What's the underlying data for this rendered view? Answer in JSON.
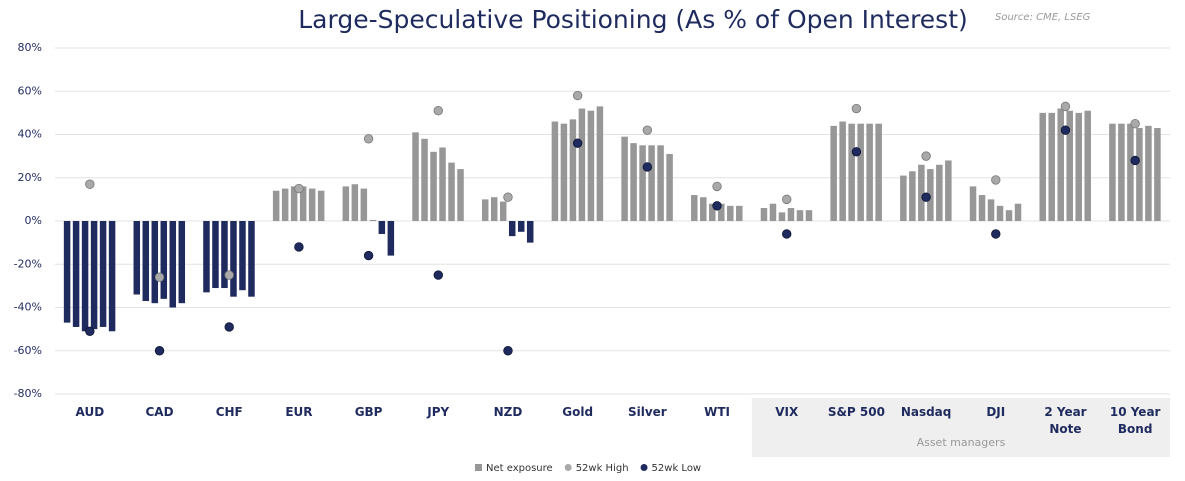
{
  "chart_data": {
    "type": "grouped-bar-range",
    "title": "Large-Speculative Positioning (As % of Open Interest)",
    "source": "Source: CME, LSEG",
    "categories": [
      "AUD",
      "CAD",
      "CHF",
      "EUR",
      "GBP",
      "JPY",
      "NZD",
      "Gold",
      "Silver",
      "WTI",
      "VIX",
      "S&P 500",
      "Nasdaq",
      "DJI",
      "2 Year Note",
      "10 Year Bond"
    ],
    "group_label": "Asset managers",
    "series": [
      {
        "name": "Net exposure",
        "color": "#979797",
        "negative_color": "#1f2b5e",
        "values": [
          [
            -47,
            -49,
            -51,
            -50,
            -49,
            -51
          ],
          [
            -34,
            -37,
            -38,
            -36,
            -40,
            -38
          ],
          [
            -33,
            -31,
            -31,
            -35,
            -32,
            -35
          ],
          [
            14,
            15,
            16,
            16,
            15,
            14
          ],
          [
            16,
            17,
            15,
            0.5,
            -6,
            -16
          ],
          [
            41,
            38,
            32,
            34,
            27,
            24
          ],
          [
            10,
            11,
            9,
            -7,
            -5,
            -10
          ],
          [
            46,
            45,
            47,
            52,
            51,
            53
          ],
          [
            39,
            36,
            35,
            35,
            35,
            31
          ],
          [
            12,
            11,
            8,
            8,
            7,
            7
          ],
          [
            6,
            8,
            4,
            6,
            5,
            5
          ],
          [
            44,
            46,
            45,
            45,
            45,
            45
          ],
          [
            21,
            23,
            26,
            24,
            26,
            28
          ],
          [
            16,
            12,
            10,
            7,
            5,
            8
          ],
          [
            50,
            50,
            52,
            51,
            50,
            51
          ],
          [
            45,
            45,
            45,
            43,
            44,
            43
          ]
        ]
      },
      {
        "name": "52wk High",
        "color": "#a9a9a9",
        "values": [
          17,
          -26,
          -25,
          15,
          38,
          51,
          11,
          58,
          42,
          16,
          10,
          52,
          30,
          19,
          53,
          45
        ]
      },
      {
        "name": "52wk Low",
        "color": "#1f2b5e",
        "values": [
          -51,
          -60,
          -49,
          -12,
          -16,
          -25,
          -60,
          36,
          25,
          7,
          -6,
          32,
          11,
          -6,
          42,
          28
        ]
      }
    ],
    "ylim": [
      -80,
      80
    ],
    "yticks": [
      {
        "value": -80,
        "label": "-80%"
      },
      {
        "value": -60,
        "label": "-60%"
      },
      {
        "value": -40,
        "label": "-40%"
      },
      {
        "value": -20,
        "label": "-20%"
      },
      {
        "value": 0,
        "label": "0%"
      },
      {
        "value": 20,
        "label": "20%"
      },
      {
        "value": 40,
        "label": "40%"
      },
      {
        "value": 60,
        "label": "60%"
      },
      {
        "value": 80,
        "label": "80%"
      }
    ],
    "grid": true
  }
}
